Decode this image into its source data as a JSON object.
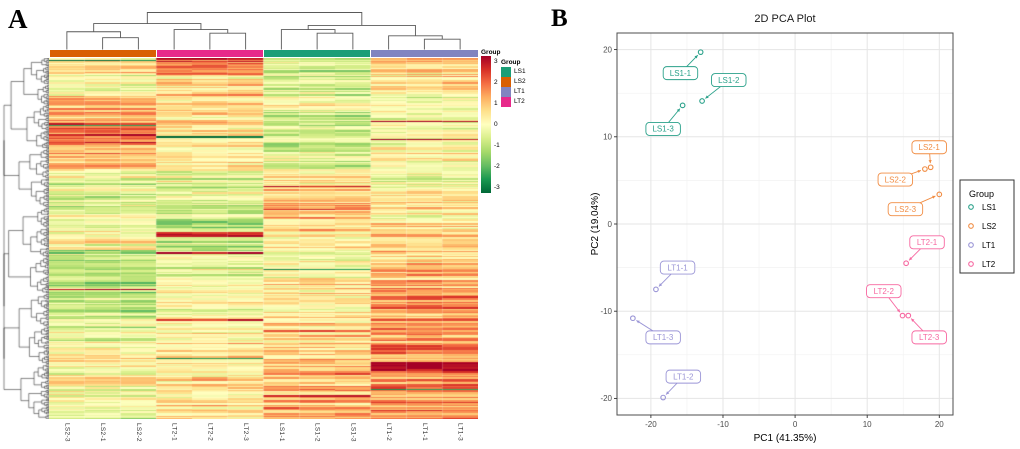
{
  "panels": {
    "a_label": "A",
    "b_label": "B"
  },
  "chart_data": [
    {
      "type": "heatmap",
      "annotation_title": "Group",
      "columns": [
        "LS2-3",
        "LS2-1",
        "LS2-2",
        "LT2-1",
        "LT2-2",
        "LT2-3",
        "LS1-1",
        "LS1-2",
        "LS1-3",
        "LT1-2",
        "LT1-1",
        "LT1-3"
      ],
      "column_group_order": [
        "LS2",
        "LT2",
        "LS1",
        "LT1"
      ],
      "annotation_colors": [
        "#D95F02",
        "#E7298A",
        "#1B9E77",
        "#8184C0"
      ],
      "group_legend": {
        "title": "Group",
        "entries": [
          {
            "label": "LS1",
            "color": "#1B9E77"
          },
          {
            "label": "LS2",
            "color": "#D95F02"
          },
          {
            "label": "LT1",
            "color": "#8184C0"
          },
          {
            "label": "LT2",
            "color": "#E7298A"
          }
        ]
      },
      "scale": {
        "min": -3,
        "max": 3,
        "tick_labels": [
          "3",
          "2",
          "1",
          "0",
          "-1",
          "-2",
          "-3"
        ],
        "colors_top_to_bottom": [
          "#A50026",
          "#D73027",
          "#F46D43",
          "#FDAE61",
          "#FEE08B",
          "#FFFFBF",
          "#D9EF8B",
          "#A6D96A",
          "#66BD63",
          "#1A9850",
          "#006837"
        ]
      },
      "row_bands": [
        {
          "until": 0.045,
          "bias": [
            0.4,
            2.0,
            -0.4,
            0.7
          ]
        },
        {
          "until": 0.105,
          "bias": [
            0.1,
            0.7,
            -0.5,
            0.5
          ]
        },
        {
          "until": 0.17,
          "bias": [
            1.1,
            0.5,
            -0.4,
            0.1
          ]
        },
        {
          "until": 0.24,
          "bias": [
            1.7,
            0.6,
            -0.7,
            -0.1
          ]
        },
        {
          "until": 0.31,
          "bias": [
            0.9,
            0.1,
            -0.4,
            0.4
          ]
        },
        {
          "until": 0.38,
          "bias": [
            -0.5,
            -0.4,
            0.4,
            0.1
          ]
        },
        {
          "until": 0.45,
          "bias": [
            -0.4,
            -0.5,
            1.1,
            0.5
          ]
        },
        {
          "until": 0.53,
          "bias": [
            0.1,
            -0.6,
            0.7,
            0.7
          ]
        },
        {
          "until": 0.62,
          "bias": [
            -0.8,
            -0.3,
            0.1,
            0.9
          ]
        },
        {
          "until": 0.72,
          "bias": [
            -0.9,
            0.1,
            0.3,
            1.3
          ]
        },
        {
          "until": 0.82,
          "bias": [
            -0.4,
            0.3,
            0.5,
            1.6
          ]
        },
        {
          "until": 0.9,
          "bias": [
            0.2,
            0.5,
            0.9,
            1.4
          ]
        },
        {
          "until": 1.0,
          "bias": [
            -0.2,
            0.4,
            1.1,
            1.7
          ]
        }
      ],
      "col_dendrogram": {
        "merges": [
          {
            "a": "L1",
            "b": "L2",
            "h": 0.32
          },
          {
            "a": "L0",
            "b": "M0",
            "h": 0.48
          },
          {
            "a": "L4",
            "b": "L5",
            "h": 0.44
          },
          {
            "a": "L3",
            "b": "M2",
            "h": 0.54
          },
          {
            "a": "M1",
            "b": "M3",
            "h": 0.7
          },
          {
            "a": "L7",
            "b": "L8",
            "h": 0.44
          },
          {
            "a": "L6",
            "b": "M5",
            "h": 0.54
          },
          {
            "a": "L10",
            "b": "L11",
            "h": 0.28
          },
          {
            "a": "L9",
            "b": "M7",
            "h": 0.37
          },
          {
            "a": "M6",
            "b": "M8",
            "h": 0.65
          },
          {
            "a": "M4",
            "b": "M9",
            "h": 1.0
          }
        ]
      }
    },
    {
      "type": "scatter",
      "title": "2D PCA Plot",
      "xlabel": "PC1 (41.35%)",
      "ylabel": "PC2 (19.04%)",
      "xlim": [
        -24.7,
        21.9
      ],
      "ylim": [
        -21.9,
        21.9
      ],
      "xticks": [
        -20,
        -10,
        0,
        10,
        20
      ],
      "yticks": [
        -20,
        -10,
        0,
        10,
        20
      ],
      "grid": "major and minor, light gray on white",
      "legend": {
        "title": "Group",
        "position": "right",
        "entries": [
          {
            "label": "LS1",
            "color": "#2AA18A"
          },
          {
            "label": "LS2",
            "color": "#F18D44"
          },
          {
            "label": "LT1",
            "color": "#9A95D6"
          },
          {
            "label": "LT2",
            "color": "#F768A1"
          }
        ]
      },
      "points": [
        {
          "id": "LS1-1",
          "group": "LS1",
          "x": -13.1,
          "y": 19.7,
          "label_x": -15.9,
          "label_y": 17.3
        },
        {
          "id": "LS1-2",
          "group": "LS1",
          "x": -12.9,
          "y": 14.1,
          "label_x": -9.2,
          "label_y": 16.5
        },
        {
          "id": "LS1-3",
          "group": "LS1",
          "x": -15.6,
          "y": 13.6,
          "label_x": -18.3,
          "label_y": 10.9
        },
        {
          "id": "LS2-1",
          "group": "LS2",
          "x": 18.8,
          "y": 6.5,
          "label_x": 18.6,
          "label_y": 8.8
        },
        {
          "id": "LS2-2",
          "group": "LS2",
          "x": 18.0,
          "y": 6.3,
          "label_x": 13.9,
          "label_y": 5.1
        },
        {
          "id": "LS2-3",
          "group": "LS2",
          "x": 20.0,
          "y": 3.4,
          "label_x": 15.3,
          "label_y": 1.7
        },
        {
          "id": "LT1-1",
          "group": "LT1",
          "x": -19.3,
          "y": -7.5,
          "label_x": -16.3,
          "label_y": -5.0
        },
        {
          "id": "LT1-2",
          "group": "LT1",
          "x": -18.3,
          "y": -19.9,
          "label_x": -15.5,
          "label_y": -17.5
        },
        {
          "id": "LT1-3",
          "group": "LT1",
          "x": -22.5,
          "y": -10.8,
          "label_x": -18.3,
          "label_y": -13.0
        },
        {
          "id": "LT2-1",
          "group": "LT2",
          "x": 15.4,
          "y": -4.5,
          "label_x": 18.3,
          "label_y": -2.1
        },
        {
          "id": "LT2-2",
          "group": "LT2",
          "x": 14.9,
          "y": -10.5,
          "label_x": 12.3,
          "label_y": -7.7
        },
        {
          "id": "LT2-3",
          "group": "LT2",
          "x": 15.7,
          "y": -10.5,
          "label_x": 18.6,
          "label_y": -13.0
        }
      ]
    }
  ]
}
